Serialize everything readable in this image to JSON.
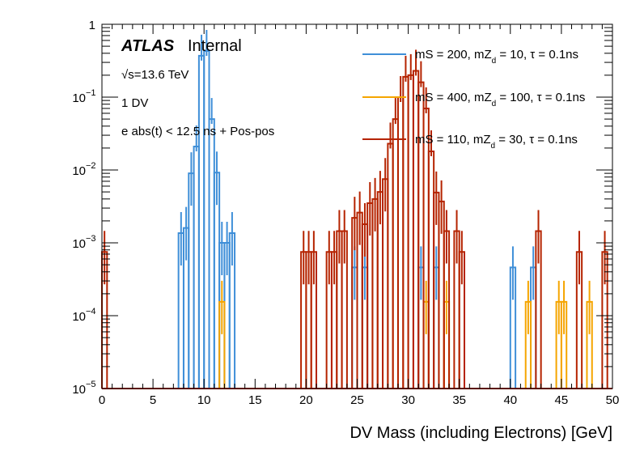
{
  "chart_data": {
    "type": "line",
    "histogram": true,
    "title": "",
    "xlabel": "DV Mass (including Electrons) [GeV]",
    "ylabel": "",
    "xlim": [
      0,
      50
    ],
    "ylim": [
      1e-05,
      1
    ],
    "yscale": "log",
    "bin_width": 0.5,
    "x_ticks": [
      "0",
      "5",
      "10",
      "15",
      "20",
      "25",
      "30",
      "35",
      "40",
      "45",
      "50"
    ],
    "x_tick_values": [
      0,
      5,
      10,
      15,
      20,
      25,
      30,
      35,
      40,
      45,
      50
    ],
    "y_ticks": [
      {
        "value": 1,
        "base": "1",
        "exp": ""
      },
      {
        "value": 0.1,
        "base": "10",
        "exp": "−1"
      },
      {
        "value": 0.01,
        "base": "10",
        "exp": "−2"
      },
      {
        "value": 0.001,
        "base": "10",
        "exp": "−3"
      },
      {
        "value": 0.0001,
        "base": "10",
        "exp": "−4"
      },
      {
        "value": 1e-05,
        "base": "10",
        "exp": "−5"
      }
    ],
    "annotations": {
      "atlas": "ATLAS",
      "internal": "Internal",
      "energy": "√s=13.6 TeV",
      "sqrt": "√",
      "energy_rest": "s=13.6 TeV",
      "selection1": "1 DV",
      "selection2": "e abs(t) < 12.5 ns + Pos-pos"
    },
    "legend_position": "top-right",
    "series": [
      {
        "name": "mS = 200, mZd = 10, τ = 0.1ns",
        "label_main": "mS = 200, mZ",
        "label_sub": "d",
        "label_rest": " = 10, τ = 0.1ns",
        "color": "#3f8fd8",
        "bins": [
          [
            7.5,
            0.00136
          ],
          [
            8.0,
            0.0016
          ],
          [
            8.5,
            0.009
          ],
          [
            9.0,
            0.021
          ],
          [
            9.5,
            0.37
          ],
          [
            10.0,
            0.43
          ],
          [
            10.5,
            0.05
          ],
          [
            11.0,
            0.0092
          ],
          [
            11.5,
            0.001
          ],
          [
            12.0,
            0.001
          ],
          [
            12.5,
            0.00136
          ],
          [
            24.5,
            0.00046
          ],
          [
            25.5,
            0.00046
          ],
          [
            31.0,
            0.00046
          ],
          [
            32.5,
            0.00046
          ],
          [
            40.0,
            0.00046
          ],
          [
            42.0,
            0.00046
          ]
        ]
      },
      {
        "name": "mS = 400, mZd = 100, τ = 0.1ns",
        "label_main": "mS = 400, mZ",
        "label_sub": "d",
        "label_rest": " = 100, τ = 0.1ns",
        "color": "#f5a500",
        "bins": [
          [
            11.5,
            0.000155
          ],
          [
            31.5,
            0.000155
          ],
          [
            33.5,
            0.000155
          ],
          [
            41.5,
            0.000155
          ],
          [
            44.5,
            0.000155
          ],
          [
            45.0,
            0.000155
          ],
          [
            47.5,
            0.000155
          ]
        ]
      },
      {
        "name": "mS = 110, mZd = 30, τ = 0.1ns",
        "label_main": "mS = 110, mZ",
        "label_sub": "d",
        "label_rest": " = 30, τ = 0.1ns",
        "color": "#b52300",
        "bins": [
          [
            0.0,
            0.00075
          ],
          [
            19.5,
            0.00075
          ],
          [
            20.0,
            0.00075
          ],
          [
            20.5,
            0.00075
          ],
          [
            22.0,
            0.00075
          ],
          [
            22.5,
            0.00075
          ],
          [
            23.0,
            0.00145
          ],
          [
            23.5,
            0.00145
          ],
          [
            24.5,
            0.0022
          ],
          [
            25.0,
            0.0026
          ],
          [
            25.5,
            0.0018
          ],
          [
            26.0,
            0.0035
          ],
          [
            26.5,
            0.004
          ],
          [
            27.0,
            0.005
          ],
          [
            27.5,
            0.0075
          ],
          [
            28.0,
            0.023
          ],
          [
            28.5,
            0.05
          ],
          [
            29.0,
            0.1
          ],
          [
            29.5,
            0.19
          ],
          [
            30.0,
            0.2
          ],
          [
            30.5,
            0.23
          ],
          [
            31.0,
            0.16
          ],
          [
            31.5,
            0.07
          ],
          [
            32.0,
            0.018
          ],
          [
            32.5,
            0.0049
          ],
          [
            33.0,
            0.0037
          ],
          [
            33.5,
            0.00145
          ],
          [
            34.5,
            0.00145
          ],
          [
            35.0,
            0.00075
          ],
          [
            42.5,
            0.00145
          ],
          [
            46.5,
            0.00075
          ],
          [
            49.0,
            0.00075
          ]
        ]
      }
    ]
  }
}
